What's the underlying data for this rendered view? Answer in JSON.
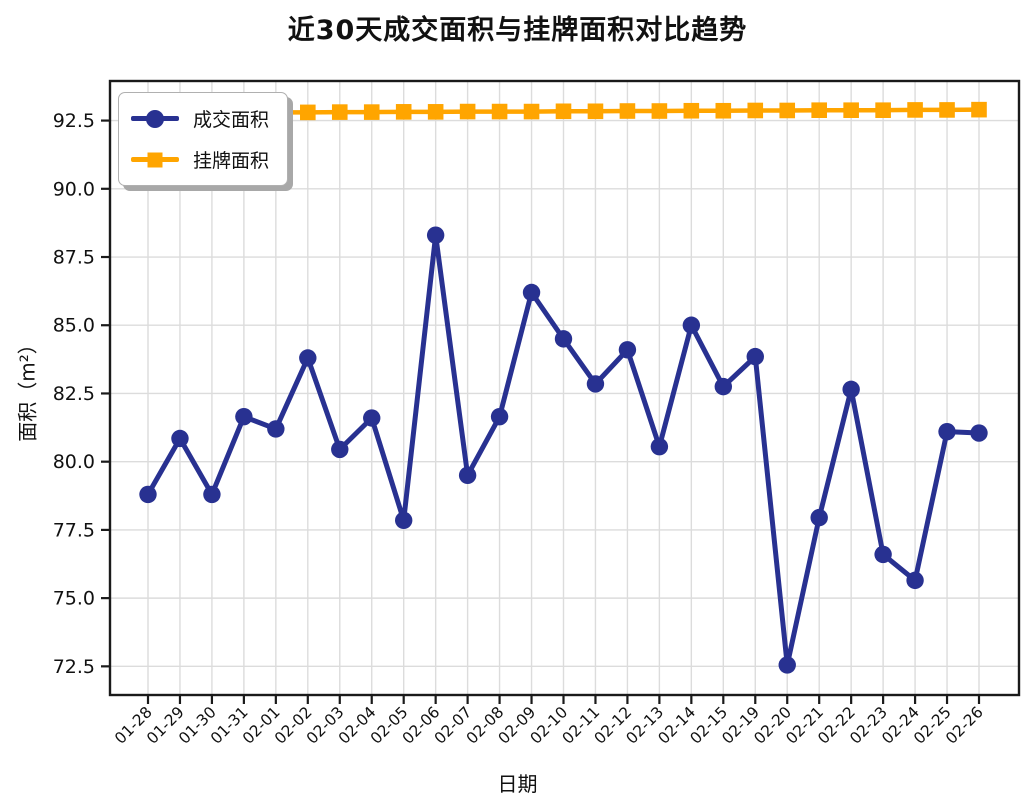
{
  "chart_data": {
    "type": "line",
    "title": "近30天成交面积与挂牌面积对比趋势",
    "xlabel": "日期",
    "ylabel": "面积（m²）",
    "categories": [
      "01-28",
      "01-29",
      "01-30",
      "01-31",
      "02-01",
      "02-02",
      "02-03",
      "02-04",
      "02-05",
      "02-06",
      "02-07",
      "02-08",
      "02-09",
      "02-10",
      "02-11",
      "02-12",
      "02-13",
      "02-14",
      "02-15",
      "02-19",
      "02-20",
      "02-21",
      "02-22",
      "02-23",
      "02-24",
      "02-25",
      "02-26"
    ],
    "series": [
      {
        "name": "成交面积",
        "color": "#283191",
        "marker": "circle",
        "values": [
          78.8,
          80.85,
          78.8,
          81.65,
          81.2,
          83.8,
          80.45,
          81.6,
          77.85,
          88.3,
          79.5,
          81.65,
          86.2,
          84.5,
          82.85,
          84.1,
          80.55,
          85.0,
          82.75,
          83.85,
          72.55,
          77.95,
          82.65,
          76.6,
          75.65,
          81.1,
          81.05
        ]
      },
      {
        "name": "挂牌面积",
        "color": "#FFA500",
        "marker": "square",
        "values": [
          92.78,
          92.78,
          92.79,
          92.79,
          92.8,
          92.8,
          92.81,
          92.81,
          92.82,
          92.82,
          92.83,
          92.83,
          92.83,
          92.84,
          92.84,
          92.85,
          92.85,
          92.86,
          92.86,
          92.87,
          92.87,
          92.88,
          92.88,
          92.88,
          92.89,
          92.89,
          92.9
        ]
      }
    ],
    "yticks": [
      "72.5",
      "75.0",
      "77.5",
      "80.0",
      "82.5",
      "85.0",
      "87.5",
      "90.0",
      "92.5"
    ],
    "ylim": [
      71.45,
      93.95
    ],
    "grid": true,
    "grid_color": "#dcdcdc",
    "axis_color": "#1a1a1a",
    "legend_position": "upper-left"
  }
}
